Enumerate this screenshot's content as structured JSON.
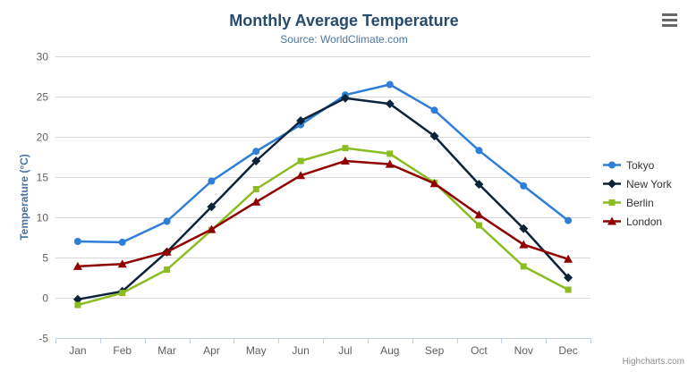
{
  "chart": {
    "credits": "Highcharts.com",
    "context_menu_icon": "hamburger-icon"
  },
  "chart_data": {
    "type": "line",
    "title": "Monthly Average Temperature",
    "subtitle": "Source: WorldClimate.com",
    "xlabel": "",
    "ylabel": "Temperature (°C)",
    "categories": [
      "Jan",
      "Feb",
      "Mar",
      "Apr",
      "May",
      "Jun",
      "Jul",
      "Aug",
      "Sep",
      "Oct",
      "Nov",
      "Dec"
    ],
    "ylim": [
      -5,
      30
    ],
    "yticks": [
      30,
      25,
      20,
      15,
      10,
      5,
      0,
      -5
    ],
    "grid": true,
    "legend_position": "right",
    "series": [
      {
        "name": "Tokyo",
        "color": "#2f7ed8",
        "marker": "circle",
        "values": [
          7.0,
          6.9,
          9.5,
          14.5,
          18.2,
          21.5,
          25.2,
          26.5,
          23.3,
          18.3,
          13.9,
          9.6
        ]
      },
      {
        "name": "New York",
        "color": "#0d233a",
        "marker": "diamond",
        "values": [
          -0.2,
          0.8,
          5.7,
          11.3,
          17.0,
          22.0,
          24.8,
          24.1,
          20.1,
          14.1,
          8.6,
          2.5
        ]
      },
      {
        "name": "Berlin",
        "color": "#8bbc21",
        "marker": "square",
        "values": [
          -0.9,
          0.6,
          3.5,
          8.4,
          13.5,
          17.0,
          18.6,
          17.9,
          14.3,
          9.0,
          3.9,
          1.0
        ]
      },
      {
        "name": "London",
        "color": "#910000",
        "marker": "triangle",
        "values": [
          3.9,
          4.2,
          5.7,
          8.5,
          11.9,
          15.2,
          17.0,
          16.6,
          14.2,
          10.3,
          6.6,
          4.8
        ]
      }
    ],
    "style": {
      "title_color": "#274b6d",
      "subtitle_color": "#4d759e",
      "axis_label_color": "#606060",
      "y_axis_title_color": "#4572a7",
      "gridline_color": "#d8d8d8",
      "x_axis_line_color": "#c0d0e0",
      "legend_text_color": "#333333"
    }
  }
}
